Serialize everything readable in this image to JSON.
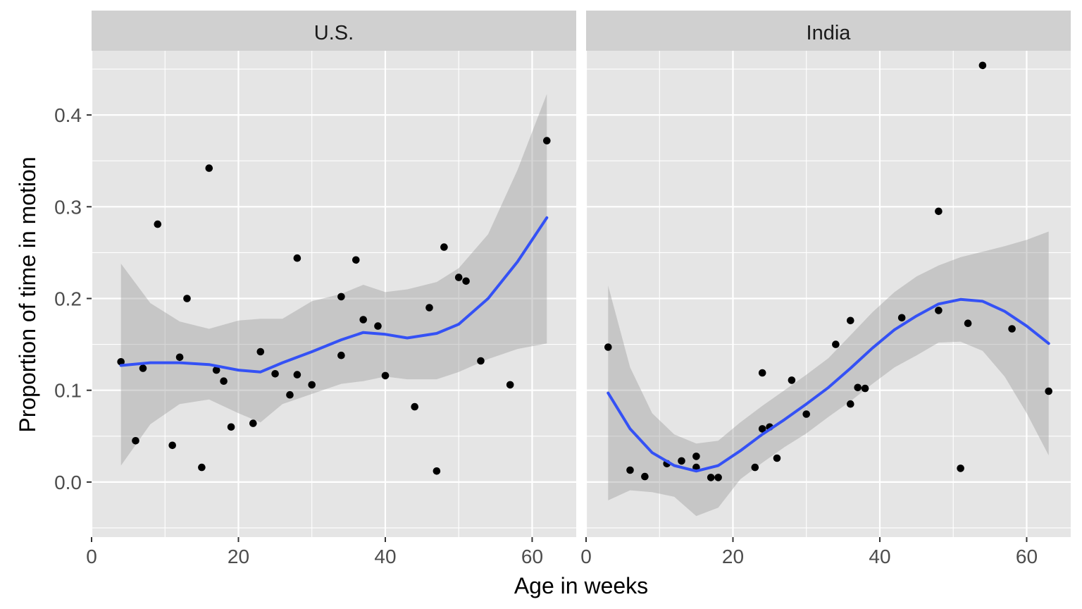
{
  "chart_data": {
    "type": "scatter",
    "xlabel": "Age in weeks",
    "ylabel": "Proportion of time in motion",
    "xlim": [
      0,
      66
    ],
    "ylim": [
      -0.06,
      0.47
    ],
    "x_ticks": [
      0,
      20,
      40,
      60
    ],
    "x_tick_labels": [
      "0",
      "20",
      "40",
      "60"
    ],
    "y_ticks": [
      0.0,
      0.1,
      0.2,
      0.3,
      0.4
    ],
    "y_tick_labels": [
      "0.0",
      "0.1",
      "0.2",
      "0.3",
      "0.4"
    ],
    "grid": true,
    "colors": {
      "panel_background": "#e5e5e5",
      "strip_background": "#d0d0d0",
      "grid_major": "#ffffff",
      "points": "#000000",
      "smooth_line": "#3451f5",
      "confidence_band": "#999999"
    },
    "facets": [
      {
        "label": "U.S.",
        "points": [
          [
            4,
            0.131
          ],
          [
            6,
            0.045
          ],
          [
            7,
            0.124
          ],
          [
            9,
            0.281
          ],
          [
            11,
            0.04
          ],
          [
            12,
            0.136
          ],
          [
            13,
            0.2
          ],
          [
            15,
            0.016
          ],
          [
            16,
            0.342
          ],
          [
            17,
            0.122
          ],
          [
            18,
            0.11
          ],
          [
            19,
            0.06
          ],
          [
            22,
            0.064
          ],
          [
            23,
            0.142
          ],
          [
            25,
            0.118
          ],
          [
            27,
            0.095
          ],
          [
            28,
            0.244
          ],
          [
            28,
            0.117
          ],
          [
            30,
            0.106
          ],
          [
            34,
            0.202
          ],
          [
            34,
            0.138
          ],
          [
            36,
            0.242
          ],
          [
            37,
            0.177
          ],
          [
            39,
            0.17
          ],
          [
            40,
            0.116
          ],
          [
            44,
            0.082
          ],
          [
            46,
            0.19
          ],
          [
            47,
            0.012
          ],
          [
            48,
            0.256
          ],
          [
            50,
            0.223
          ],
          [
            51,
            0.219
          ],
          [
            53,
            0.132
          ],
          [
            57,
            0.106
          ],
          [
            62,
            0.372
          ]
        ],
        "smooth": {
          "x": [
            4,
            8,
            12,
            16,
            20,
            23,
            26,
            30,
            34,
            37,
            40,
            43,
            47,
            50,
            54,
            58,
            62
          ],
          "y": [
            0.127,
            0.13,
            0.13,
            0.128,
            0.122,
            0.12,
            0.13,
            0.142,
            0.155,
            0.163,
            0.161,
            0.157,
            0.162,
            0.172,
            0.2,
            0.24,
            0.288
          ],
          "upper": [
            0.238,
            0.195,
            0.175,
            0.167,
            0.176,
            0.178,
            0.178,
            0.197,
            0.205,
            0.215,
            0.207,
            0.21,
            0.218,
            0.233,
            0.27,
            0.34,
            0.423
          ],
          "lower": [
            0.018,
            0.063,
            0.085,
            0.09,
            0.075,
            0.065,
            0.085,
            0.096,
            0.107,
            0.11,
            0.115,
            0.112,
            0.112,
            0.12,
            0.134,
            0.145,
            0.151
          ]
        }
      },
      {
        "label": "India",
        "points": [
          [
            3,
            0.147
          ],
          [
            6,
            0.013
          ],
          [
            8,
            0.006
          ],
          [
            11,
            0.02
          ],
          [
            13,
            0.023
          ],
          [
            15,
            0.028
          ],
          [
            15,
            0.016
          ],
          [
            17,
            0.005
          ],
          [
            18,
            0.005
          ],
          [
            23,
            0.016
          ],
          [
            24,
            0.119
          ],
          [
            24,
            0.058
          ],
          [
            25,
            0.06
          ],
          [
            26,
            0.026
          ],
          [
            28,
            0.111
          ],
          [
            30,
            0.074
          ],
          [
            34,
            0.15
          ],
          [
            36,
            0.176
          ],
          [
            36,
            0.085
          ],
          [
            37,
            0.103
          ],
          [
            38,
            0.102
          ],
          [
            43,
            0.179
          ],
          [
            48,
            0.295
          ],
          [
            48,
            0.187
          ],
          [
            51,
            0.015
          ],
          [
            52,
            0.173
          ],
          [
            54,
            0.454
          ],
          [
            58,
            0.167
          ],
          [
            63,
            0.099
          ]
        ],
        "smooth": {
          "x": [
            3,
            6,
            9,
            12,
            15,
            18,
            21,
            24,
            27,
            30,
            33,
            36,
            39,
            42,
            45,
            48,
            51,
            54,
            57,
            60,
            63
          ],
          "y": [
            0.097,
            0.058,
            0.032,
            0.018,
            0.012,
            0.018,
            0.034,
            0.052,
            0.068,
            0.085,
            0.103,
            0.124,
            0.146,
            0.166,
            0.181,
            0.194,
            0.199,
            0.197,
            0.186,
            0.17,
            0.151
          ],
          "upper": [
            0.214,
            0.125,
            0.075,
            0.052,
            0.042,
            0.045,
            0.065,
            0.083,
            0.1,
            0.117,
            0.135,
            0.16,
            0.185,
            0.207,
            0.224,
            0.236,
            0.245,
            0.251,
            0.257,
            0.264,
            0.273
          ],
          "lower": [
            -0.02,
            -0.009,
            -0.011,
            -0.016,
            -0.037,
            -0.028,
            0.003,
            0.021,
            0.038,
            0.053,
            0.071,
            0.088,
            0.107,
            0.125,
            0.138,
            0.152,
            0.153,
            0.143,
            0.115,
            0.075,
            0.029
          ]
        }
      }
    ]
  }
}
